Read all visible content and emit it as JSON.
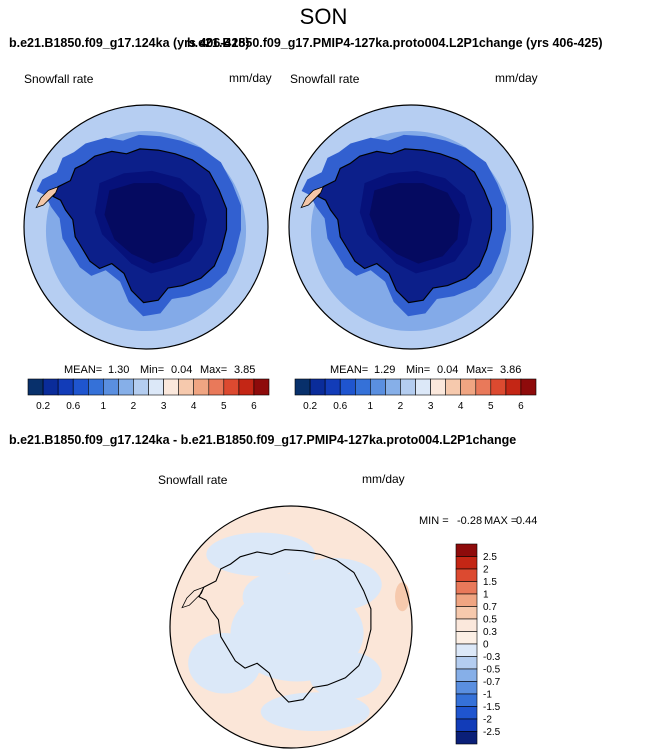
{
  "figure": {
    "season": "SON",
    "case1_title": "b.e21.B1850.f09_g17.124ka (yrs 406-425)",
    "case2_title": "b.e21.B1850.f09_g17.PMIP4-127ka.proto004.L2P1change (yrs 406-425)",
    "diff_title": "b.e21.B1850.f09_g17.124ka - b.e21.B1850.f09_g17.PMIP4-127ka.proto004.L2P1change"
  },
  "panels": {
    "left": {
      "variable": "Snowfall rate",
      "units": "mm/day",
      "mean_label": "MEAN=",
      "mean": "1.30",
      "min_label": "Min=",
      "min": "0.04",
      "max_label": "Max=",
      "max": "3.85"
    },
    "right": {
      "variable": "Snowfall rate",
      "units": "mm/day",
      "mean_label": "MEAN=",
      "mean": "1.29",
      "min_label": "Min=",
      "min": "0.04",
      "max_label": "Max=",
      "max": "3.86"
    },
    "diff": {
      "variable": "Snowfall rate",
      "units": "mm/day",
      "min_label": "MIN =",
      "min": "-0.28",
      "max_label": "MAX =",
      "max": "0.44"
    }
  },
  "chart_data": [
    {
      "type": "heatmap",
      "title": "b.e21.B1850.f09_g17.124ka (yrs 406-425)",
      "variable": "Snowfall rate",
      "units": "mm/day",
      "projection": "south polar stereographic",
      "stats": {
        "mean": 1.3,
        "min": 0.04,
        "max": 3.85
      },
      "colorbar": {
        "ticks": [
          "0.2",
          "0.6",
          "1",
          "2",
          "3",
          "4",
          "5",
          "6"
        ],
        "colors": [
          "#08306b",
          "#0a2c9a",
          "#123cb8",
          "#1f55cf",
          "#3571d8",
          "#5a8fe0",
          "#86afe8",
          "#b4cdf0",
          "#dce8f8",
          "#fbe8dc",
          "#f6c9ad",
          "#f0a582",
          "#e9795a",
          "#dc4a30",
          "#c42615",
          "#8e0b0b"
        ]
      },
      "field_colors": {
        "ocean_far": "#b6cef2",
        "ocean_ring": "#5a8de0",
        "coast": "#3260d0",
        "interior": "#0c1f8a",
        "plateau": "#06117a",
        "peninsula_tip": "#f4c7a8"
      }
    },
    {
      "type": "heatmap",
      "title": "b.e21.B1850.f09_g17.PMIP4-127ka.proto004.L2P1change (yrs 406-425)",
      "variable": "Snowfall rate",
      "units": "mm/day",
      "projection": "south polar stereographic",
      "stats": {
        "mean": 1.29,
        "min": 0.04,
        "max": 3.86
      },
      "colorbar": {
        "ticks": [
          "0.2",
          "0.6",
          "1",
          "2",
          "3",
          "4",
          "5",
          "6"
        ],
        "colors": [
          "#08306b",
          "#0a2c9a",
          "#123cb8",
          "#1f55cf",
          "#3571d8",
          "#5a8fe0",
          "#86afe8",
          "#b4cdf0",
          "#dce8f8",
          "#fbe8dc",
          "#f6c9ad",
          "#f0a582",
          "#e9795a",
          "#dc4a30",
          "#c42615",
          "#8e0b0b"
        ]
      },
      "field_colors": {
        "ocean_far": "#b6cef2",
        "ocean_ring": "#5a8de0",
        "coast": "#3260d0",
        "interior": "#0c1f8a",
        "plateau": "#06117a",
        "peninsula_tip": "#f4c7a8"
      }
    },
    {
      "type": "heatmap",
      "title": "b.e21.B1850.f09_g17.124ka - b.e21.B1850.f09_g17.PMIP4-127ka.proto004.L2P1change",
      "variable": "Snowfall rate",
      "units": "mm/day",
      "projection": "south polar stereographic",
      "stats": {
        "min": -0.28,
        "max": 0.44
      },
      "colorbar": {
        "orientation": "vertical",
        "ticks": [
          "2.5",
          "2",
          "1.5",
          "1",
          "0.7",
          "0.5",
          "0.3",
          "0",
          "-0.3",
          "-0.5",
          "-0.7",
          "-1",
          "-1.5",
          "-2",
          "-2.5"
        ],
        "colors": [
          "#8e0b0b",
          "#c42615",
          "#dc4a30",
          "#e9795a",
          "#f0a582",
          "#f6c9ad",
          "#fbe8dc",
          "#fcefe5",
          "#dce8f8",
          "#b4cdf0",
          "#86afe8",
          "#5a8fe0",
          "#3571d8",
          "#1f55cf",
          "#123cb8",
          "#0a1f78"
        ]
      },
      "field_colors": {
        "positive": "#fbe6d8",
        "negative": "#dbe8f8",
        "edge_positive": "#f6c9ad"
      }
    }
  ]
}
